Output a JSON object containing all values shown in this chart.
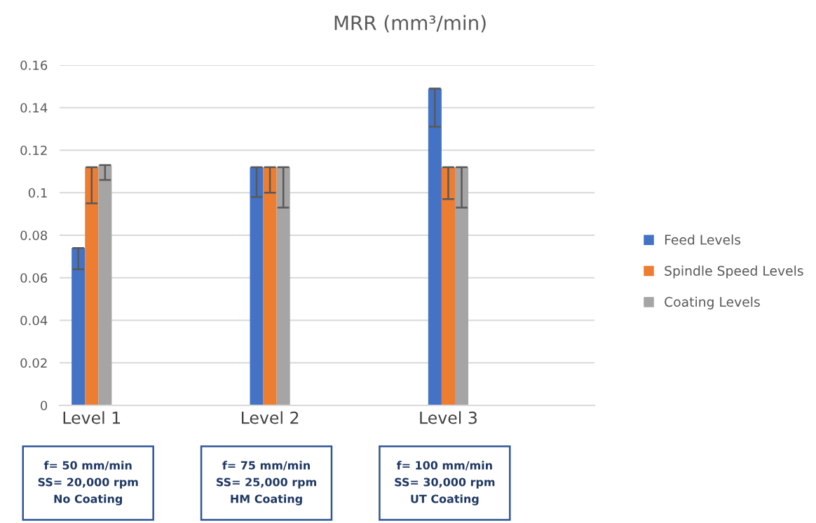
{
  "chart_data": {
    "type": "bar",
    "title": "MRR (mm³/min)",
    "categories": [
      "Level 1",
      "Level 2",
      "Level 3"
    ],
    "series": [
      {
        "name": "Feed Levels",
        "color": "#4472c4",
        "values": [
          0.074,
          0.112,
          0.149
        ],
        "errors": [
          [
            0.064,
            0.074
          ],
          [
            0.098,
            0.112
          ],
          [
            0.131,
            0.149
          ]
        ]
      },
      {
        "name": "Spindle Speed Levels",
        "color": "#ed7d31",
        "values": [
          0.112,
          0.112,
          0.112
        ],
        "errors": [
          [
            0.095,
            0.112
          ],
          [
            0.1,
            0.112
          ],
          [
            0.097,
            0.112
          ]
        ]
      },
      {
        "name": "Coating Levels",
        "color": "#a5a5a5",
        "values": [
          0.113,
          0.112,
          0.112
        ],
        "errors": [
          [
            0.106,
            0.113
          ],
          [
            0.093,
            0.112
          ],
          [
            0.093,
            0.112
          ]
        ]
      }
    ],
    "ylim": [
      0,
      0.16
    ],
    "yticks": [
      0,
      0.02,
      0.04,
      0.06,
      0.08,
      0.1,
      0.12,
      0.14,
      0.16
    ],
    "grid": "y",
    "legend": "right",
    "annotations": [
      "f= 50 mm/min\nSS= 20,000 rpm\nNo Coating",
      "f= 75 mm/min\nSS= 25,000 rpm\nHM Coating",
      "f= 100 mm/min\nSS= 30,000 rpm\nUT Coating"
    ]
  }
}
